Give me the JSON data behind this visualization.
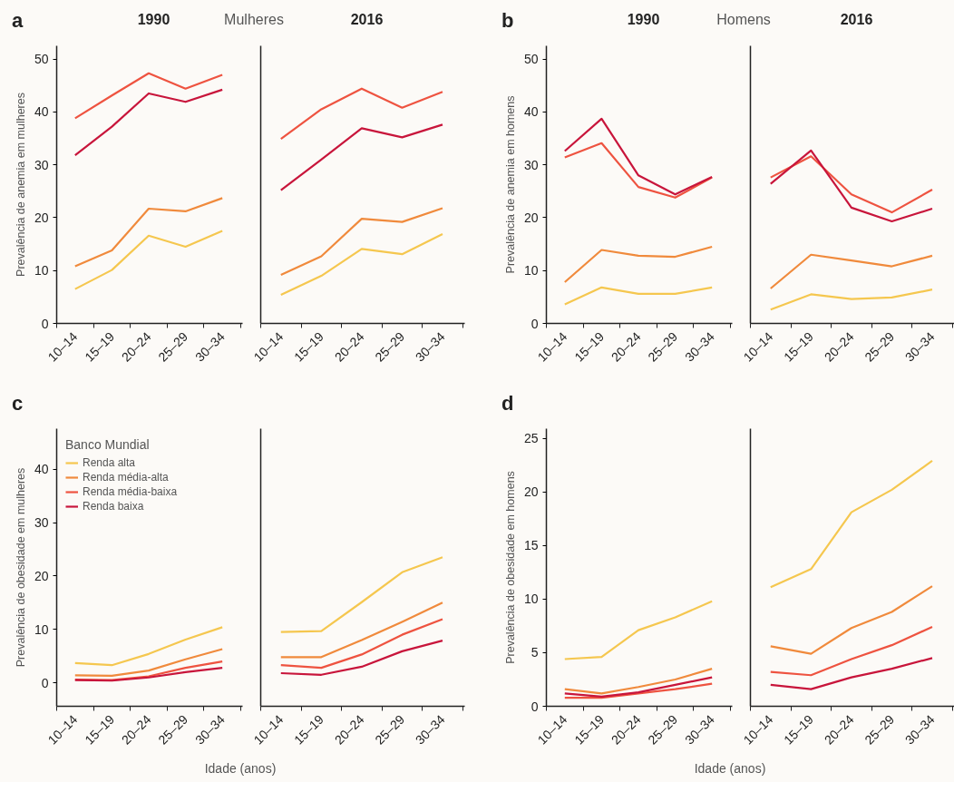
{
  "chart_data": [
    {
      "type": "line",
      "title": "1990",
      "subtitle": "Mulheres",
      "annotations": [
        "a"
      ],
      "ylabel": "Prevalência de anemia em mulheres",
      "categories": [
        "10–14",
        "15–19",
        "20–24",
        "25–29",
        "30–34"
      ],
      "ylim": [
        0,
        52.5
      ],
      "yticks": [
        0,
        10,
        20,
        30,
        40,
        50
      ],
      "series": [
        {
          "color": "#f5c74f",
          "values": [
            6.5,
            10.1,
            16.6,
            14.5,
            17.5
          ]
        },
        {
          "color": "#f08a3c",
          "values": [
            10.8,
            13.8,
            21.7,
            21.2,
            23.7
          ]
        },
        {
          "color": "#ee5340",
          "values": [
            38.8,
            43.1,
            47.3,
            44.4,
            47.0
          ]
        },
        {
          "color": "#c8153b",
          "values": [
            31.8,
            37.2,
            43.5,
            41.9,
            44.2
          ]
        }
      ]
    },
    {
      "type": "line",
      "title": "2016",
      "tick_labels": "x",
      "categories": [
        "10–14",
        "15–19",
        "20–24",
        "25–29",
        "30–34"
      ],
      "ylim": [
        0,
        52.5
      ],
      "yticks": [
        0,
        10,
        20,
        30,
        40,
        50
      ],
      "series": [
        {
          "color": "#f5c74f",
          "values": [
            5.4,
            9.0,
            14.1,
            13.1,
            16.9
          ]
        },
        {
          "color": "#f08a3c",
          "values": [
            9.2,
            12.7,
            19.8,
            19.2,
            21.8
          ]
        },
        {
          "color": "#ee5340",
          "values": [
            34.9,
            40.5,
            44.4,
            40.8,
            43.8
          ]
        },
        {
          "color": "#c8153b",
          "values": [
            25.2,
            31.0,
            36.9,
            35.2,
            37.6
          ]
        }
      ]
    },
    {
      "type": "line",
      "title": "1990",
      "subtitle": "Homens",
      "annotations": [
        "b"
      ],
      "ylabel": "Prevalência de anemia em homens",
      "categories": [
        "10–14",
        "15–19",
        "20–24",
        "25–29",
        "30–34"
      ],
      "ylim": [
        0,
        52.5
      ],
      "yticks": [
        0,
        10,
        20,
        30,
        40,
        50
      ],
      "series": [
        {
          "color": "#f5c74f",
          "values": [
            3.6,
            6.8,
            5.6,
            5.6,
            6.8
          ]
        },
        {
          "color": "#f08a3c",
          "values": [
            7.8,
            13.9,
            12.8,
            12.6,
            14.5
          ]
        },
        {
          "color": "#ee5340",
          "values": [
            31.4,
            34.1,
            25.8,
            23.8,
            27.6
          ]
        },
        {
          "color": "#c8153b",
          "values": [
            32.6,
            38.7,
            28.0,
            24.4,
            27.7
          ]
        }
      ]
    },
    {
      "type": "line",
      "title": "2016",
      "tick_labels": "x",
      "categories": [
        "10–14",
        "15–19",
        "20–24",
        "25–29",
        "30–34"
      ],
      "ylim": [
        0,
        52.5
      ],
      "yticks": [
        0,
        10,
        20,
        30,
        40,
        50
      ],
      "series": [
        {
          "color": "#f5c74f",
          "values": [
            2.6,
            5.5,
            4.6,
            4.9,
            6.4
          ]
        },
        {
          "color": "#f08a3c",
          "values": [
            6.6,
            13.0,
            11.9,
            10.8,
            12.8
          ]
        },
        {
          "color": "#ee5340",
          "values": [
            27.6,
            31.6,
            24.4,
            21.0,
            25.3
          ]
        },
        {
          "color": "#c8153b",
          "values": [
            26.4,
            32.7,
            21.9,
            19.3,
            21.7
          ]
        }
      ]
    },
    {
      "type": "line",
      "annotations": [
        "c"
      ],
      "ylabel": "Prevalência de obesidade em mulheres",
      "xlabel": "Idade (anos)",
      "legend": "top left",
      "legend_title": "Banco Mundial",
      "categories": [
        "10–14",
        "15–19",
        "20–24",
        "25–29",
        "30–34"
      ],
      "ylim": [
        -4.4,
        47.6
      ],
      "yticks": [
        0,
        10,
        20,
        30,
        40
      ],
      "series": [
        {
          "name": "Renda alta",
          "color": "#f5c74f",
          "values": [
            3.7,
            3.3,
            5.4,
            8.1,
            10.4
          ]
        },
        {
          "name": "Renda média-alta",
          "color": "#f08a3c",
          "values": [
            1.4,
            1.3,
            2.3,
            4.4,
            6.3
          ]
        },
        {
          "name": "Renda média-baixa",
          "color": "#ee5340",
          "values": [
            0.6,
            0.5,
            1.2,
            2.8,
            4.0
          ]
        },
        {
          "name": "Renda baixa",
          "color": "#c8153b",
          "values": [
            0.5,
            0.4,
            1.0,
            2.0,
            2.8
          ]
        }
      ]
    },
    {
      "type": "line",
      "tick_labels": "x",
      "categories": [
        "10–14",
        "15–19",
        "20–24",
        "25–29",
        "30–34"
      ],
      "ylim": [
        -4.4,
        47.6
      ],
      "yticks": [
        0,
        10,
        20,
        30,
        40
      ],
      "series": [
        {
          "color": "#f5c74f",
          "values": [
            9.5,
            9.7,
            15.1,
            20.7,
            23.5
          ]
        },
        {
          "color": "#f08a3c",
          "values": [
            4.8,
            4.8,
            8.0,
            11.4,
            15.0
          ]
        },
        {
          "color": "#ee5340",
          "values": [
            3.3,
            2.8,
            5.3,
            9.0,
            11.9
          ]
        },
        {
          "color": "#c8153b",
          "values": [
            1.8,
            1.5,
            3.0,
            5.9,
            7.9
          ]
        }
      ]
    },
    {
      "type": "line",
      "annotations": [
        "d"
      ],
      "ylabel": "Prevalência de obesidade em homens",
      "xlabel": "Idade (anos)",
      "categories": [
        "10–14",
        "15–19",
        "20–24",
        "25–29",
        "30–34"
      ],
      "ylim": [
        0,
        25.9
      ],
      "yticks": [
        0,
        5,
        10,
        15,
        20,
        25
      ],
      "series": [
        {
          "color": "#f5c74f",
          "values": [
            4.4,
            4.6,
            7.1,
            8.3,
            9.8
          ]
        },
        {
          "color": "#f08a3c",
          "values": [
            1.6,
            1.2,
            1.8,
            2.5,
            3.5
          ]
        },
        {
          "color": "#ee5340",
          "values": [
            0.8,
            0.8,
            1.2,
            1.6,
            2.1
          ]
        },
        {
          "color": "#c8153b",
          "values": [
            1.2,
            0.9,
            1.3,
            2.0,
            2.7
          ]
        }
      ]
    },
    {
      "type": "line",
      "tick_labels": "x",
      "categories": [
        "10–14",
        "15–19",
        "20–24",
        "25–29",
        "30–34"
      ],
      "ylim": [
        0,
        25.9
      ],
      "yticks": [
        0,
        5,
        10,
        15,
        20,
        25
      ],
      "series": [
        {
          "color": "#f5c74f",
          "values": [
            11.1,
            12.8,
            18.1,
            20.2,
            22.9
          ]
        },
        {
          "color": "#f08a3c",
          "values": [
            5.6,
            4.9,
            7.3,
            8.8,
            11.2
          ]
        },
        {
          "color": "#ee5340",
          "values": [
            3.2,
            2.9,
            4.4,
            5.7,
            7.4
          ]
        },
        {
          "color": "#c8153b",
          "values": [
            2.0,
            1.6,
            2.7,
            3.5,
            4.5
          ]
        }
      ]
    }
  ]
}
